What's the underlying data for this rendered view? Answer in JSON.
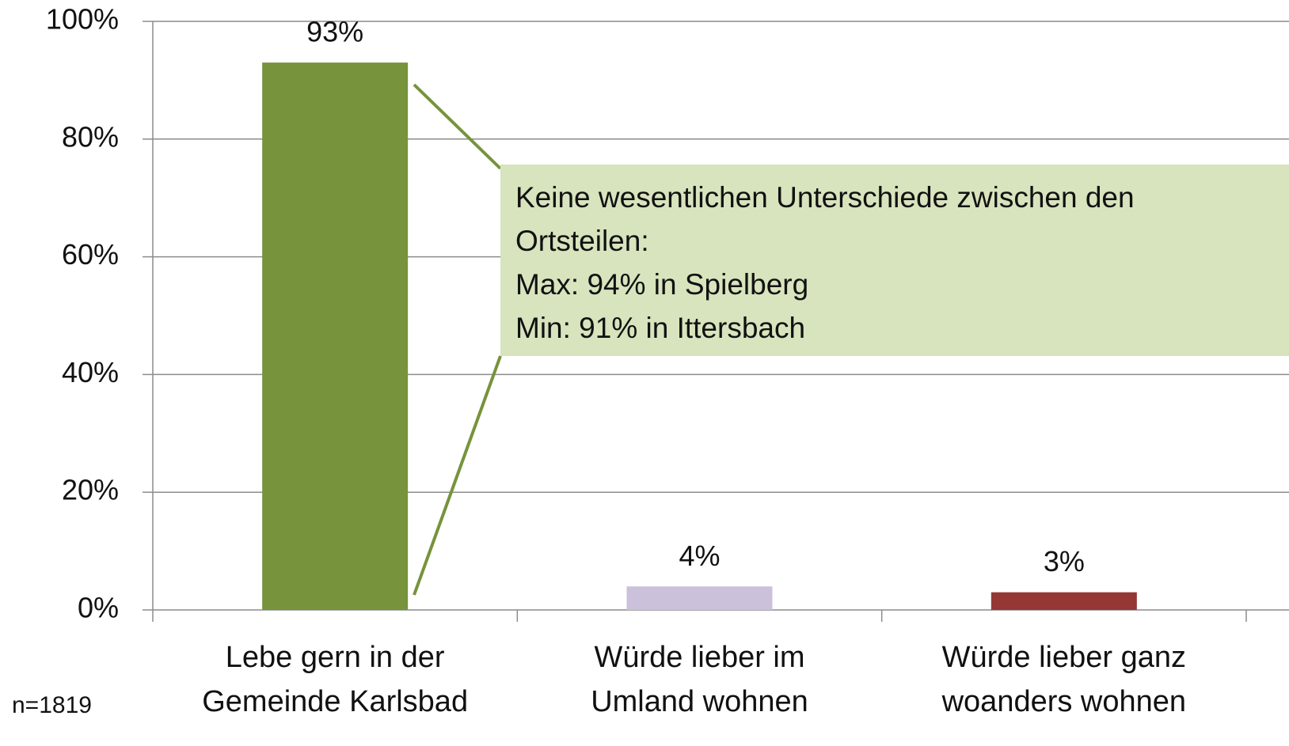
{
  "chart_data": {
    "type": "bar",
    "categories": [
      "Lebe gern in der\nGemeinde Karlsbad",
      "Würde lieber im\nUmland wohnen",
      "Würde lieber ganz\nwoanders wohnen"
    ],
    "values": [
      93,
      4,
      3
    ],
    "value_labels": [
      "93%",
      "4%",
      "3%"
    ],
    "colors": [
      "#77933c",
      "#ccc1da",
      "#953735"
    ],
    "ylim": [
      0,
      100
    ],
    "yticks": [
      {
        "value": 0,
        "label": "0%"
      },
      {
        "value": 20,
        "label": "20%"
      },
      {
        "value": 40,
        "label": "40%"
      },
      {
        "value": 60,
        "label": "60%"
      },
      {
        "value": 80,
        "label": "80%"
      },
      {
        "value": 100,
        "label": "100%"
      }
    ],
    "grid": true,
    "annotation": [
      "Keine wesentlichen Unterschiede zwischen den",
      "Ortsteilen:",
      "Max: 94% in Spielberg",
      "Min: 91% in Ittersbach"
    ],
    "note": "n=1819"
  }
}
